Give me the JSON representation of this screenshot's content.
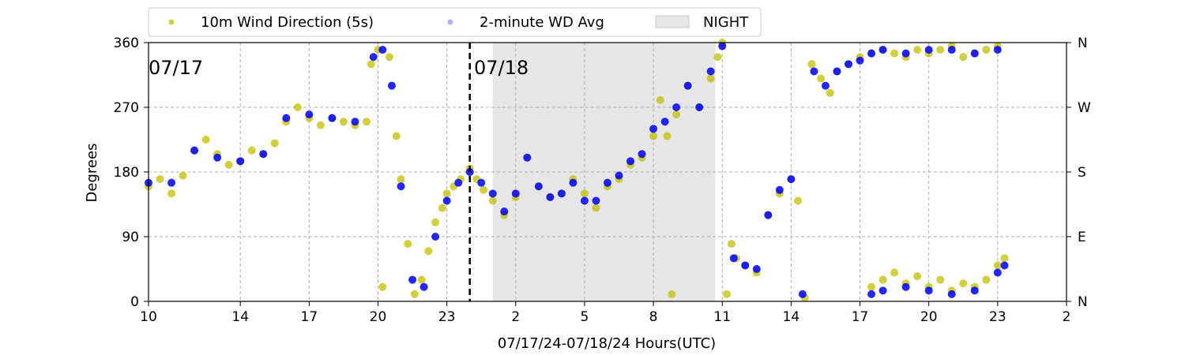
{
  "chart_data": {
    "type": "scatter",
    "xlabel": "07/17/24-07/18/24  Hours(UTC)",
    "ylabel": "Degrees",
    "xlim": [
      10,
      50
    ],
    "ylim": [
      0,
      360
    ],
    "x_ticks": [
      {
        "value": 10,
        "label": "10"
      },
      {
        "value": 14,
        "label": "14"
      },
      {
        "value": 17,
        "label": "17"
      },
      {
        "value": 20,
        "label": "20"
      },
      {
        "value": 23,
        "label": "23"
      },
      {
        "value": 26,
        "label": "2"
      },
      {
        "value": 29,
        "label": "5"
      },
      {
        "value": 32,
        "label": "8"
      },
      {
        "value": 35,
        "label": "11"
      },
      {
        "value": 38,
        "label": "14"
      },
      {
        "value": 41,
        "label": "17"
      },
      {
        "value": 44,
        "label": "20"
      },
      {
        "value": 47,
        "label": "23"
      },
      {
        "value": 50,
        "label": "2"
      }
    ],
    "y_ticks": [
      {
        "value": 0,
        "label": "0"
      },
      {
        "value": 90,
        "label": "90"
      },
      {
        "value": 180,
        "label": "180"
      },
      {
        "value": 270,
        "label": "270"
      },
      {
        "value": 360,
        "label": "360"
      }
    ],
    "y2_ticks": [
      {
        "value": 0,
        "label": "N"
      },
      {
        "value": 90,
        "label": "E"
      },
      {
        "value": 180,
        "label": "S"
      },
      {
        "value": 270,
        "label": "W"
      },
      {
        "value": 360,
        "label": "N"
      }
    ],
    "grid": true,
    "legend_position": "top-left, above plot",
    "day_boundary": {
      "x": 24,
      "label_left": "07/17",
      "label_right": "07/18"
    },
    "night_shading": {
      "x_start": 25,
      "x_end": 34.7,
      "label": "NIGHT",
      "color": "#e6e6e6"
    },
    "series": [
      {
        "name": "10m Wind Direction (5s)",
        "color": "#bfbf00",
        "points": [
          [
            10.0,
            160
          ],
          [
            10.5,
            170
          ],
          [
            11.0,
            150
          ],
          [
            11.5,
            175
          ],
          [
            12.0,
            210
          ],
          [
            12.5,
            225
          ],
          [
            13.0,
            205
          ],
          [
            13.5,
            190
          ],
          [
            14.0,
            195
          ],
          [
            14.5,
            210
          ],
          [
            15.0,
            205
          ],
          [
            15.5,
            220
          ],
          [
            16.0,
            250
          ],
          [
            16.5,
            270
          ],
          [
            17.0,
            255
          ],
          [
            17.5,
            245
          ],
          [
            18.0,
            255
          ],
          [
            18.5,
            250
          ],
          [
            19.0,
            245
          ],
          [
            19.5,
            250
          ],
          [
            19.7,
            330
          ],
          [
            20.0,
            350
          ],
          [
            20.2,
            20
          ],
          [
            20.5,
            340
          ],
          [
            20.8,
            230
          ],
          [
            21.0,
            170
          ],
          [
            21.3,
            80
          ],
          [
            21.6,
            10
          ],
          [
            21.9,
            30
          ],
          [
            22.2,
            70
          ],
          [
            22.5,
            110
          ],
          [
            22.8,
            130
          ],
          [
            23.0,
            150
          ],
          [
            23.3,
            160
          ],
          [
            23.6,
            170
          ],
          [
            24.0,
            185
          ],
          [
            24.3,
            170
          ],
          [
            24.6,
            155
          ],
          [
            25.0,
            140
          ],
          [
            25.5,
            120
          ],
          [
            26.0,
            145
          ],
          [
            26.5,
            200
          ],
          [
            27.0,
            160
          ],
          [
            27.5,
            145
          ],
          [
            28.0,
            150
          ],
          [
            28.5,
            170
          ],
          [
            29.0,
            150
          ],
          [
            29.5,
            130
          ],
          [
            30.0,
            160
          ],
          [
            30.5,
            170
          ],
          [
            31.0,
            190
          ],
          [
            31.5,
            200
          ],
          [
            32.0,
            230
          ],
          [
            32.3,
            280
          ],
          [
            32.6,
            230
          ],
          [
            32.8,
            10
          ],
          [
            33.0,
            260
          ],
          [
            33.5,
            300
          ],
          [
            34.0,
            270
          ],
          [
            34.5,
            310
          ],
          [
            34.8,
            340
          ],
          [
            35.0,
            360
          ],
          [
            35.2,
            10
          ],
          [
            35.4,
            80
          ],
          [
            35.6,
            60
          ],
          [
            36.0,
            50
          ],
          [
            36.5,
            40
          ],
          [
            37.0,
            120
          ],
          [
            37.5,
            150
          ],
          [
            38.0,
            170
          ],
          [
            38.3,
            140
          ],
          [
            38.6,
            5
          ],
          [
            38.9,
            330
          ],
          [
            39.3,
            310
          ],
          [
            39.7,
            290
          ],
          [
            40.0,
            320
          ],
          [
            40.5,
            330
          ],
          [
            41.0,
            340
          ],
          [
            41.5,
            345
          ],
          [
            42.0,
            350
          ],
          [
            42.5,
            345
          ],
          [
            43.0,
            340
          ],
          [
            43.5,
            350
          ],
          [
            44.0,
            345
          ],
          [
            44.5,
            350
          ],
          [
            45.0,
            355
          ],
          [
            45.5,
            340
          ],
          [
            46.0,
            345
          ],
          [
            46.5,
            350
          ],
          [
            47.0,
            355
          ],
          [
            41.5,
            20
          ],
          [
            42.0,
            30
          ],
          [
            42.5,
            40
          ],
          [
            43.0,
            25
          ],
          [
            43.5,
            35
          ],
          [
            44.0,
            20
          ],
          [
            44.5,
            30
          ],
          [
            45.0,
            15
          ],
          [
            45.5,
            25
          ],
          [
            46.0,
            20
          ],
          [
            46.5,
            30
          ],
          [
            47.0,
            50
          ],
          [
            47.3,
            60
          ]
        ]
      },
      {
        "name": "2-minute WD Avg",
        "color": "#0000ff",
        "points": [
          [
            10.0,
            165
          ],
          [
            11.0,
            165
          ],
          [
            12.0,
            210
          ],
          [
            13.0,
            200
          ],
          [
            14.0,
            195
          ],
          [
            15.0,
            205
          ],
          [
            16.0,
            255
          ],
          [
            17.0,
            260
          ],
          [
            18.0,
            255
          ],
          [
            19.0,
            250
          ],
          [
            19.8,
            340
          ],
          [
            20.2,
            350
          ],
          [
            20.6,
            300
          ],
          [
            21.0,
            160
          ],
          [
            21.5,
            30
          ],
          [
            22.0,
            20
          ],
          [
            22.5,
            90
          ],
          [
            23.0,
            140
          ],
          [
            23.5,
            165
          ],
          [
            24.0,
            180
          ],
          [
            24.5,
            165
          ],
          [
            25.0,
            150
          ],
          [
            25.5,
            125
          ],
          [
            26.0,
            150
          ],
          [
            26.5,
            200
          ],
          [
            27.0,
            160
          ],
          [
            27.5,
            145
          ],
          [
            28.0,
            150
          ],
          [
            28.5,
            165
          ],
          [
            29.0,
            140
          ],
          [
            29.5,
            140
          ],
          [
            30.0,
            165
          ],
          [
            30.5,
            175
          ],
          [
            31.0,
            195
          ],
          [
            31.5,
            205
          ],
          [
            32.0,
            240
          ],
          [
            32.5,
            250
          ],
          [
            33.0,
            270
          ],
          [
            33.5,
            300
          ],
          [
            34.0,
            270
          ],
          [
            34.5,
            320
          ],
          [
            35.0,
            355
          ],
          [
            35.5,
            60
          ],
          [
            36.0,
            50
          ],
          [
            36.5,
            45
          ],
          [
            37.0,
            120
          ],
          [
            37.5,
            155
          ],
          [
            38.0,
            170
          ],
          [
            38.5,
            10
          ],
          [
            39.0,
            320
          ],
          [
            39.5,
            300
          ],
          [
            40.0,
            320
          ],
          [
            40.5,
            330
          ],
          [
            41.0,
            335
          ],
          [
            41.5,
            345
          ],
          [
            42.0,
            350
          ],
          [
            43.0,
            345
          ],
          [
            44.0,
            350
          ],
          [
            45.0,
            350
          ],
          [
            46.0,
            345
          ],
          [
            47.0,
            350
          ],
          [
            41.5,
            10
          ],
          [
            42.0,
            15
          ],
          [
            43.0,
            20
          ],
          [
            44.0,
            15
          ],
          [
            45.0,
            10
          ],
          [
            46.0,
            15
          ],
          [
            47.0,
            40
          ],
          [
            47.3,
            50
          ]
        ]
      }
    ]
  }
}
